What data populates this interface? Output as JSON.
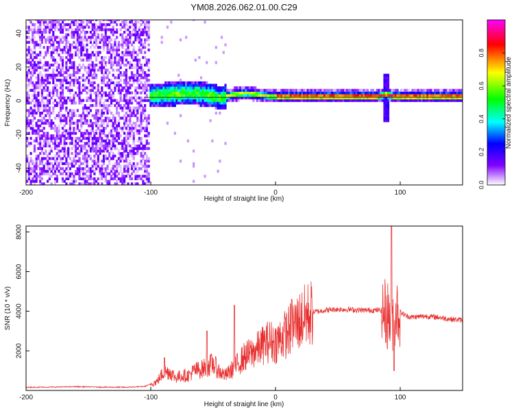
{
  "title": "YM08.2026.062.01.00.C29",
  "chart_data": [
    {
      "type": "heatmap",
      "title": "YM08.2026.062.01.00.C29",
      "xlabel": "Height of straight line (km)",
      "ylabel": "Frequency (Hz)",
      "xlim": [
        -200,
        150
      ],
      "ylim": [
        -50,
        48
      ],
      "x_ticks": [
        -200,
        -100,
        0,
        100
      ],
      "y_ticks": [
        -40,
        -20,
        0,
        20,
        40
      ],
      "grid": false,
      "colorbar": {
        "label": "Normalized spectral amplitude",
        "range": [
          0,
          1
        ],
        "ticks": [
          0.0,
          0.2,
          0.4,
          0.6,
          0.8
        ],
        "colors": [
          "#ffffff",
          "#8000ff",
          "#0000ff",
          "#00ffff",
          "#00ff00",
          "#ffff00",
          "#ff0000",
          "#ff00ff"
        ]
      },
      "regions": [
        {
          "x_range": [
            -200,
            -100
          ],
          "description_level": 0.12,
          "freq_spread": [
            -50,
            48
          ]
        },
        {
          "x_range": [
            -100,
            -40
          ],
          "description_level": 0.3,
          "freq_spread": [
            -6,
            8
          ]
        },
        {
          "x_range": [
            -40,
            150
          ],
          "description_level": 0.75,
          "freq_spread": [
            -1,
            4
          ]
        }
      ],
      "ridge": {
        "x": [
          -105,
          -90,
          -70,
          -55,
          -45,
          -35,
          -25,
          -15,
          -5,
          0,
          20,
          50,
          80,
          88,
          95,
          110,
          150
        ],
        "y": [
          2,
          3,
          4,
          3,
          1,
          3,
          4,
          3,
          2,
          2,
          2,
          2,
          2,
          3,
          2,
          2,
          2
        ]
      },
      "spike": {
        "x": 88,
        "y_range": [
          -14,
          16
        ]
      }
    },
    {
      "type": "line",
      "xlabel": "Height of straight line (km)",
      "ylabel": "SNR (10 * v/v)",
      "xlim": [
        -200,
        150
      ],
      "ylim": [
        0,
        8300
      ],
      "x_ticks": [
        -200,
        -100,
        0,
        100
      ],
      "y_ticks": [
        2000,
        4000,
        6000,
        8000
      ],
      "grid": false,
      "line_color": "#e83030",
      "series": [
        {
          "x": [
            -200,
            -180,
            -160,
            -140,
            -120,
            -105,
            -95,
            -90,
            -85,
            -80,
            -75,
            -70,
            -65,
            -60,
            -55,
            -50,
            -45,
            -40,
            -35,
            -30,
            -25,
            -20,
            -15,
            -10,
            -5,
            0,
            5,
            10,
            15,
            20,
            25,
            30,
            40,
            50,
            60,
            70,
            80,
            85,
            90,
            93,
            95,
            97,
            100,
            105,
            110,
            120,
            130,
            140,
            150
          ],
          "values": [
            160,
            170,
            190,
            170,
            160,
            200,
            450,
            900,
            950,
            650,
            750,
            750,
            1000,
            1050,
            1200,
            1350,
            950,
            750,
            1050,
            1350,
            1700,
            1850,
            2050,
            2300,
            2500,
            2400,
            2700,
            2950,
            3300,
            3550,
            3800,
            3950,
            4050,
            4100,
            4080,
            4050,
            4050,
            4050,
            3800,
            3500,
            3900,
            4050,
            3950,
            3750,
            3700,
            3750,
            3700,
            3600,
            3550
          ]
        }
      ],
      "peaks": [
        {
          "x": -89,
          "y": 1650
        },
        {
          "x": -55,
          "y": 3000
        },
        {
          "x": -33,
          "y": 4300
        },
        {
          "x": 13,
          "y": 4600
        },
        {
          "x": 93,
          "y": 8300
        },
        {
          "x": 95,
          "y": 1000
        }
      ]
    }
  ]
}
